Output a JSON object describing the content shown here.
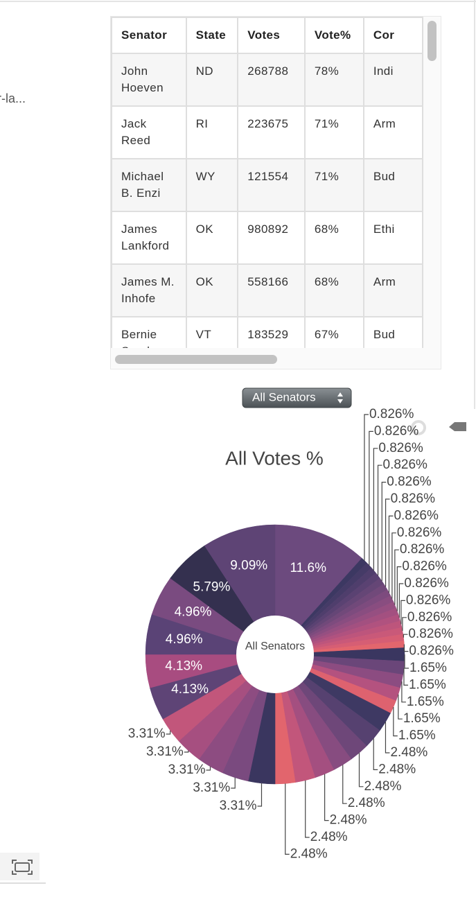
{
  "left_panel": {
    "text": "r-la..."
  },
  "table": {
    "columns": [
      "Senator",
      "State",
      "Votes",
      "Vote%",
      "Cor"
    ],
    "rows": [
      [
        "John Hoeven",
        "ND",
        "268788",
        "78%",
        "Indi"
      ],
      [
        "Jack Reed",
        "RI",
        "223675",
        "71%",
        "Arm"
      ],
      [
        "Michael B. Enzi",
        "WY",
        "121554",
        "71%",
        "Bud"
      ],
      [
        "James Lankford",
        "OK",
        "980892",
        "68%",
        "Ethi"
      ],
      [
        "James M. Inhofe",
        "OK",
        "558166",
        "68%",
        "Arm"
      ],
      [
        "Bernie Sanders",
        "VT",
        "183529",
        "67%",
        "Bud"
      ]
    ]
  },
  "dropdown": {
    "label": "All Senators"
  },
  "chart_data": {
    "type": "pie",
    "title": "All Votes %",
    "hole_text": "All Senators",
    "values": [
      11.6,
      0.826,
      0.826,
      0.826,
      0.826,
      0.826,
      0.826,
      0.826,
      0.826,
      0.826,
      0.826,
      0.826,
      0.826,
      0.826,
      0.826,
      0.826,
      1.65,
      1.65,
      1.65,
      1.65,
      1.65,
      2.48,
      2.48,
      2.48,
      2.48,
      2.48,
      2.48,
      2.48,
      3.31,
      3.31,
      3.31,
      3.31,
      3.31,
      4.13,
      4.13,
      4.96,
      4.96,
      5.79,
      9.09
    ],
    "value_labels": [
      "11.6%",
      "0.826%",
      "0.826%",
      "0.826%",
      "0.826%",
      "0.826%",
      "0.826%",
      "0.826%",
      "0.826%",
      "0.826%",
      "0.826%",
      "0.826%",
      "0.826%",
      "0.826%",
      "0.826%",
      "0.826%",
      "1.65%",
      "1.65%",
      "1.65%",
      "1.65%",
      "1.65%",
      "2.48%",
      "2.48%",
      "2.48%",
      "2.48%",
      "2.48%",
      "2.48%",
      "2.48%",
      "3.31%",
      "3.31%",
      "3.31%",
      "3.31%",
      "3.31%",
      "4.13%",
      "4.13%",
      "4.96%",
      "4.96%",
      "5.79%",
      "9.09%"
    ],
    "colors": [
      "#6c4a7e",
      "#3c3862",
      "#453b67",
      "#4f3e6c",
      "#5a4272",
      "#654676",
      "#71497a",
      "#7d4b7e",
      "#894d80",
      "#964f81",
      "#a35080",
      "#b0527f",
      "#bd557c",
      "#c95979",
      "#d65e74",
      "#e3666d",
      "#3a3660",
      "#6a4679",
      "#8c4c81",
      "#b4527f",
      "#de626f",
      "#3e3963",
      "#564170",
      "#6e4779",
      "#874c80",
      "#a44f80",
      "#c2567b",
      "#e2656d",
      "#3a365f",
      "#7a4a7f",
      "#8d4c81",
      "#a64f80",
      "#c2567b",
      "#5e4476",
      "#a84c80",
      "#5a4376",
      "#7a4b80",
      "#34304f",
      "#5e4475"
    ]
  }
}
